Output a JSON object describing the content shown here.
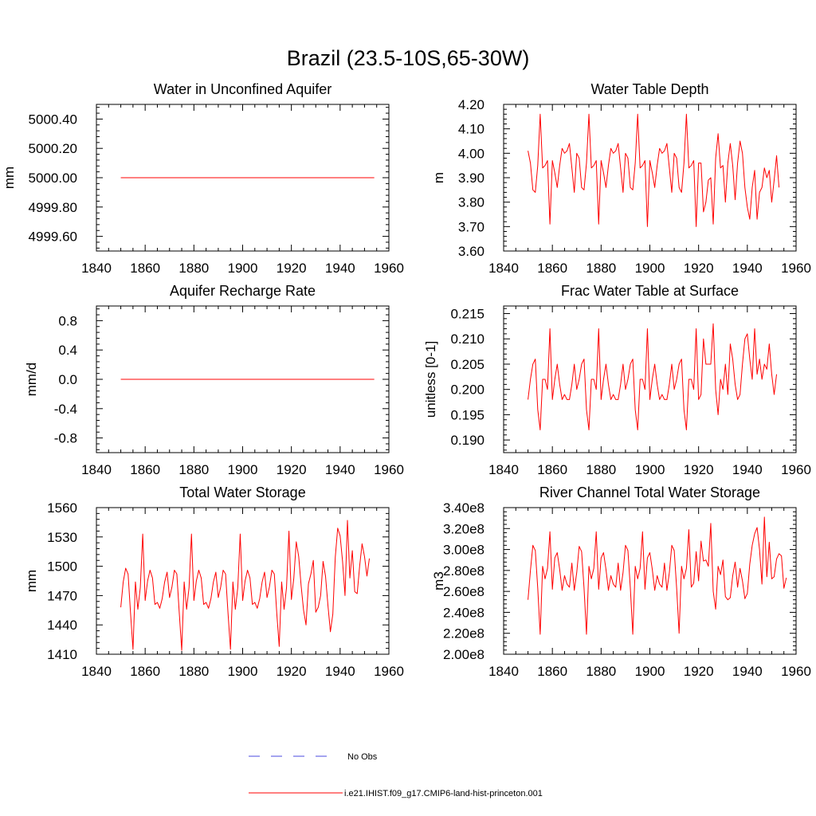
{
  "page_title": "Brazil (23.5-10S,65-30W)",
  "legend": {
    "entries": [
      {
        "label": "No Obs",
        "color": "#4a4adf",
        "style": "dashed"
      },
      {
        "label": "i.e21.IHIST.f09_g17.CMIP6-land-hist-princeton.001",
        "color": "#ff0000",
        "style": "solid"
      }
    ]
  },
  "colors": {
    "model": "#ff0000",
    "obs": "#4a4adf",
    "axis": "#000000"
  },
  "chart_data": [
    {
      "type": "line",
      "title": "Water in Unconfined Aquifer",
      "ylabel": "mm",
      "xlim": [
        1840,
        1960
      ],
      "ylim": [
        4999.5,
        5000.5
      ],
      "xticks": [
        1840,
        1860,
        1880,
        1900,
        1920,
        1940,
        1960
      ],
      "yticks": [
        4999.6,
        4999.8,
        5000.0,
        5000.2,
        5000.4
      ],
      "ytick_labels": [
        "4999.60",
        "4999.80",
        "5000.00",
        "5000.20",
        "5000.40"
      ],
      "x_start": 1850,
      "x_step": 1,
      "series": [
        {
          "values": [
            5000,
            5000,
            5000,
            5000,
            5000,
            5000,
            5000,
            5000,
            5000,
            5000,
            5000,
            5000,
            5000,
            5000,
            5000,
            5000,
            5000,
            5000,
            5000,
            5000,
            5000,
            5000,
            5000,
            5000,
            5000,
            5000,
            5000,
            5000,
            5000,
            5000,
            5000,
            5000,
            5000,
            5000,
            5000,
            5000,
            5000,
            5000,
            5000,
            5000,
            5000,
            5000,
            5000,
            5000,
            5000,
            5000,
            5000,
            5000,
            5000,
            5000,
            5000,
            5000,
            5000,
            5000,
            5000,
            5000,
            5000,
            5000,
            5000,
            5000,
            5000,
            5000,
            5000,
            5000,
            5000,
            5000,
            5000,
            5000,
            5000,
            5000,
            5000,
            5000,
            5000,
            5000,
            5000,
            5000,
            5000,
            5000,
            5000,
            5000,
            5000,
            5000,
            5000,
            5000,
            5000,
            5000,
            5000,
            5000,
            5000,
            5000,
            5000,
            5000,
            5000,
            5000,
            5000,
            5000,
            5000,
            5000,
            5000,
            5000,
            5000,
            5000,
            5000,
            5000,
            5000
          ]
        }
      ]
    },
    {
      "type": "line",
      "title": "Water Table Depth",
      "ylabel": "m",
      "xlim": [
        1840,
        1960
      ],
      "ylim": [
        3.6,
        4.2
      ],
      "xticks": [
        1840,
        1860,
        1880,
        1900,
        1920,
        1940,
        1960
      ],
      "yticks": [
        3.6,
        3.7,
        3.8,
        3.9,
        4.0,
        4.1,
        4.2
      ],
      "ytick_labels": [
        "3.60",
        "3.70",
        "3.80",
        "3.90",
        "4.00",
        "4.10",
        "4.20"
      ],
      "x_start": 1850,
      "x_step": 1,
      "series": [
        {
          "values": [
            4.01,
            3.96,
            3.85,
            3.84,
            3.95,
            4.16,
            3.94,
            3.95,
            3.97,
            3.71,
            3.97,
            3.92,
            3.86,
            3.95,
            4.02,
            4.0,
            4.01,
            4.04,
            3.94,
            3.84,
            4.0,
            3.98,
            3.86,
            3.85,
            3.96,
            4.16,
            3.94,
            3.95,
            3.97,
            3.71,
            3.97,
            3.92,
            3.86,
            3.95,
            4.02,
            4.0,
            4.01,
            4.04,
            3.94,
            3.84,
            4.0,
            3.98,
            3.86,
            3.85,
            3.96,
            4.16,
            3.94,
            3.95,
            3.97,
            3.7,
            3.97,
            3.92,
            3.86,
            3.95,
            4.02,
            4.0,
            4.01,
            4.04,
            3.94,
            3.84,
            4.0,
            3.98,
            3.86,
            3.84,
            3.96,
            4.16,
            3.94,
            3.95,
            3.97,
            3.7,
            3.96,
            3.96,
            3.76,
            3.8,
            3.89,
            3.9,
            3.71,
            3.98,
            4.08,
            3.94,
            3.95,
            3.8,
            3.96,
            4.04,
            3.95,
            3.81,
            3.96,
            4.05,
            4.0,
            3.86,
            3.78,
            3.73,
            3.86,
            3.93,
            3.73,
            3.84,
            3.86,
            3.94,
            3.9,
            3.93,
            3.8,
            3.89,
            3.99,
            3.86
          ]
        }
      ]
    },
    {
      "type": "line",
      "title": "Aquifer Recharge Rate",
      "ylabel": "mm/d",
      "xlim": [
        1840,
        1960
      ],
      "ylim": [
        -1.0,
        1.0
      ],
      "xticks": [
        1840,
        1860,
        1880,
        1900,
        1920,
        1940,
        1960
      ],
      "yticks": [
        -0.8,
        -0.4,
        0.0,
        0.4,
        0.8
      ],
      "ytick_labels": [
        "-0.8",
        "-0.4",
        "0.0",
        "0.4",
        "0.8"
      ],
      "x_start": 1850,
      "x_step": 1,
      "series": [
        {
          "values": [
            0,
            0,
            0,
            0,
            0,
            0,
            0,
            0,
            0,
            0,
            0,
            0,
            0,
            0,
            0,
            0,
            0,
            0,
            0,
            0,
            0,
            0,
            0,
            0,
            0,
            0,
            0,
            0,
            0,
            0,
            0,
            0,
            0,
            0,
            0,
            0,
            0,
            0,
            0,
            0,
            0,
            0,
            0,
            0,
            0,
            0,
            0,
            0,
            0,
            0,
            0,
            0,
            0,
            0,
            0,
            0,
            0,
            0,
            0,
            0,
            0,
            0,
            0,
            0,
            0,
            0,
            0,
            0,
            0,
            0,
            0,
            0,
            0,
            0,
            0,
            0,
            0,
            0,
            0,
            0,
            0,
            0,
            0,
            0,
            0,
            0,
            0,
            0,
            0,
            0,
            0,
            0,
            0,
            0,
            0,
            0,
            0,
            0,
            0,
            0,
            0,
            0,
            0,
            0,
            0
          ]
        }
      ]
    },
    {
      "type": "line",
      "title": "Frac Water Table at Surface",
      "ylabel": "unitless [0-1]",
      "xlim": [
        1840,
        1960
      ],
      "ylim": [
        0.1875,
        0.2165
      ],
      "xticks": [
        1840,
        1860,
        1880,
        1900,
        1920,
        1940,
        1960
      ],
      "yticks": [
        0.19,
        0.195,
        0.2,
        0.205,
        0.21,
        0.215
      ],
      "ytick_labels": [
        "0.190",
        "0.195",
        "0.200",
        "0.205",
        "0.210",
        "0.215"
      ],
      "x_start": 1850,
      "x_step": 1,
      "series": [
        {
          "values": [
            0.198,
            0.202,
            0.205,
            0.206,
            0.196,
            0.192,
            0.202,
            0.202,
            0.2,
            0.212,
            0.198,
            0.202,
            0.205,
            0.201,
            0.198,
            0.199,
            0.198,
            0.198,
            0.201,
            0.205,
            0.2,
            0.202,
            0.205,
            0.206,
            0.196,
            0.192,
            0.202,
            0.202,
            0.2,
            0.212,
            0.198,
            0.202,
            0.205,
            0.201,
            0.198,
            0.199,
            0.198,
            0.198,
            0.201,
            0.205,
            0.2,
            0.202,
            0.205,
            0.206,
            0.196,
            0.192,
            0.202,
            0.202,
            0.2,
            0.212,
            0.198,
            0.202,
            0.205,
            0.201,
            0.198,
            0.199,
            0.198,
            0.198,
            0.201,
            0.205,
            0.2,
            0.202,
            0.205,
            0.206,
            0.196,
            0.192,
            0.202,
            0.202,
            0.2,
            0.212,
            0.198,
            0.199,
            0.21,
            0.205,
            0.205,
            0.205,
            0.213,
            0.2,
            0.195,
            0.202,
            0.2,
            0.205,
            0.199,
            0.209,
            0.206,
            0.201,
            0.198,
            0.199,
            0.205,
            0.21,
            0.211,
            0.206,
            0.202,
            0.212,
            0.203,
            0.206,
            0.202,
            0.205,
            0.204,
            0.209,
            0.203,
            0.199,
            0.203
          ]
        }
      ]
    },
    {
      "type": "line",
      "title": "Total Water Storage",
      "ylabel": "mm",
      "xlim": [
        1840,
        1960
      ],
      "ylim": [
        1410,
        1560
      ],
      "xticks": [
        1840,
        1860,
        1880,
        1900,
        1920,
        1940,
        1960
      ],
      "yticks": [
        1410,
        1440,
        1470,
        1500,
        1530,
        1560
      ],
      "ytick_labels": [
        "1410",
        "1440",
        "1470",
        "1500",
        "1530",
        "1560"
      ],
      "x_start": 1850,
      "x_step": 1,
      "series": [
        {
          "values": [
            1458,
            1484,
            1498,
            1492,
            1452,
            1415,
            1484,
            1456,
            1478,
            1533,
            1465,
            1485,
            1496,
            1488,
            1461,
            1463,
            1457,
            1467,
            1484,
            1494,
            1468,
            1479,
            1496,
            1492,
            1452,
            1414,
            1484,
            1456,
            1478,
            1533,
            1465,
            1485,
            1496,
            1488,
            1461,
            1463,
            1457,
            1467,
            1484,
            1494,
            1468,
            1479,
            1496,
            1492,
            1452,
            1415,
            1484,
            1456,
            1478,
            1533,
            1465,
            1485,
            1496,
            1488,
            1461,
            1463,
            1457,
            1467,
            1484,
            1494,
            1468,
            1479,
            1496,
            1492,
            1452,
            1418,
            1484,
            1456,
            1478,
            1536,
            1466,
            1488,
            1525,
            1510,
            1480,
            1455,
            1440,
            1482,
            1492,
            1506,
            1453,
            1458,
            1470,
            1505,
            1490,
            1460,
            1433,
            1451,
            1509,
            1539,
            1531,
            1505,
            1470,
            1547,
            1488,
            1516,
            1474,
            1472,
            1500,
            1523,
            1510,
            1490,
            1508
          ]
        }
      ]
    },
    {
      "type": "line",
      "title": "River Channel Total Water Storage",
      "ylabel": "m3",
      "xlim": [
        1840,
        1960
      ],
      "ylim": [
        200000000.0,
        340000000.0
      ],
      "xticks": [
        1840,
        1860,
        1880,
        1900,
        1920,
        1940,
        1960
      ],
      "yticks": [
        200000000.0,
        220000000.0,
        240000000.0,
        260000000.0,
        280000000.0,
        300000000.0,
        320000000.0,
        340000000.0
      ],
      "ytick_labels": [
        "2.00e8",
        "2.20e8",
        "2.40e8",
        "2.60e8",
        "2.80e8",
        "3.00e8",
        "3.20e8",
        "3.40e8"
      ],
      "x_start": 1850,
      "x_step": 1,
      "series": [
        {
          "values": [
            252000000.0,
            280000000.0,
            304000000.0,
            299000000.0,
            263000000.0,
            219000000.0,
            284000000.0,
            272000000.0,
            282000000.0,
            317000000.0,
            262000000.0,
            292000000.0,
            297000000.0,
            281000000.0,
            261000000.0,
            275000000.0,
            267000000.0,
            264000000.0,
            287000000.0,
            261000000.0,
            278000000.0,
            303000000.0,
            298000000.0,
            263000000.0,
            219000000.0,
            284000000.0,
            272000000.0,
            282000000.0,
            317000000.0,
            262000000.0,
            292000000.0,
            297000000.0,
            281000000.0,
            261000000.0,
            275000000.0,
            267000000.0,
            264000000.0,
            287000000.0,
            261000000.0,
            278000000.0,
            304000000.0,
            299000000.0,
            263000000.0,
            219000000.0,
            284000000.0,
            272000000.0,
            282000000.0,
            317000000.0,
            262000000.0,
            292000000.0,
            297000000.0,
            281000000.0,
            261000000.0,
            275000000.0,
            267000000.0,
            264000000.0,
            287000000.0,
            261000000.0,
            278000000.0,
            304000000.0,
            299000000.0,
            263000000.0,
            220000000.0,
            284000000.0,
            272000000.0,
            282000000.0,
            319000000.0,
            264000000.0,
            268000000.0,
            298000000.0,
            270000000.0,
            308000000.0,
            289000000.0,
            290000000.0,
            284000000.0,
            325000000.0,
            260000000.0,
            243000000.0,
            284000000.0,
            276000000.0,
            290000000.0,
            255000000.0,
            252000000.0,
            254000000.0,
            275000000.0,
            288000000.0,
            264000000.0,
            282000000.0,
            270000000.0,
            253000000.0,
            258000000.0,
            286000000.0,
            304000000.0,
            315000000.0,
            321000000.0,
            300000000.0,
            267000000.0,
            331000000.0,
            274000000.0,
            307000000.0,
            272000000.0,
            274000000.0,
            291000000.0,
            296000000.0,
            294000000.0,
            263000000.0,
            273000000.0
          ]
        }
      ]
    }
  ]
}
